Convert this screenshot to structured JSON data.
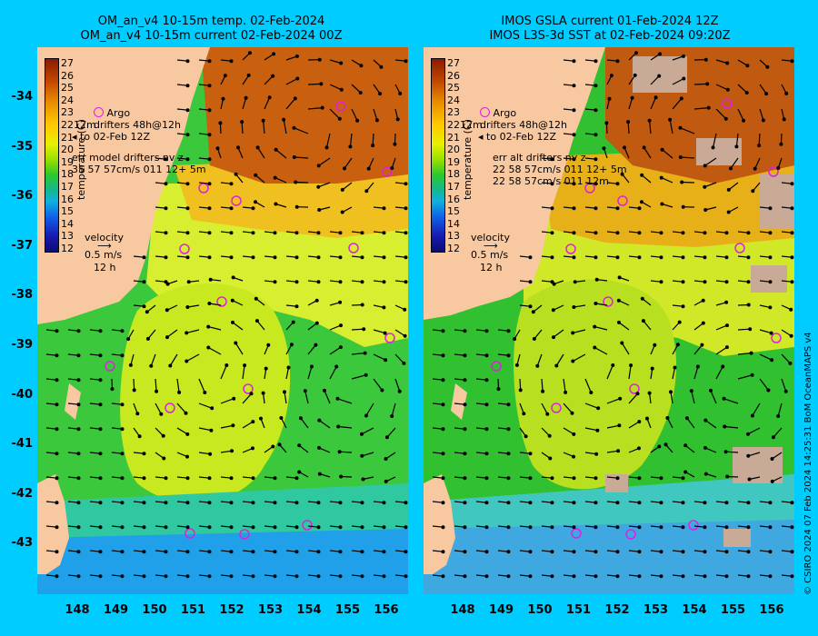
{
  "left_panel": {
    "title_line1": "OM_an_v4  10-15m temp. 02-Feb-2024",
    "title_line2": "OM_an_v4  10-15m current 02-Feb-2024 00Z",
    "legend": {
      "argo": "Argo",
      "drifters_line1": "drifters 48h@12h",
      "drifters_line2": "to 02-Feb 12Z",
      "err_line1": "err model drifters nv z",
      "err_line2": "35 57 57cm/s 011 12+ 5m",
      "velocity_title": "velocity",
      "velocity_value": "0.5 m/s",
      "velocity_time": "12 h",
      "side_label": "12m"
    }
  },
  "right_panel": {
    "title_line1": "IMOS GSLA current 01-Feb-2024 12Z",
    "title_line2": "IMOS L3S-3d SST at 02-Feb-2024 09:20Z",
    "legend": {
      "argo": "Argo",
      "drifters_line1": "drifters 48h@12h",
      "drifters_line2": "to 02-Feb 12Z",
      "err_line1": "err alt drifters nv z",
      "err_line2": "22 58 57cm/s 011 12+ 5m",
      "err_line3": "22 58 57cm/s 011 12m",
      "velocity_title": "velocity",
      "velocity_value": "0.5 m/s",
      "velocity_time": "12 h",
      "side_label": "12m"
    }
  },
  "colorbar": {
    "unit": "temperature (C)",
    "ticks": [
      "27",
      "26",
      "25",
      "24",
      "23",
      "22",
      "21",
      "20",
      "19",
      "18",
      "17",
      "16",
      "15",
      "14",
      "13",
      "12"
    ]
  },
  "y_axis": [
    "-34",
    "-35",
    "-36",
    "-37",
    "-38",
    "-39",
    "-40",
    "-41",
    "-42",
    "-43"
  ],
  "x_axis": [
    "148",
    "149",
    "150",
    "151",
    "152",
    "153",
    "154",
    "155",
    "156"
  ],
  "credit": "© CSIRO 2024   07 Feb 2024 14:25:31 BoM OceanMAPS v4",
  "colors": {
    "background": "#00ccff",
    "land": "#f8c8a0",
    "argo": "#e020e0",
    "cloud": "#c8aa96"
  }
}
